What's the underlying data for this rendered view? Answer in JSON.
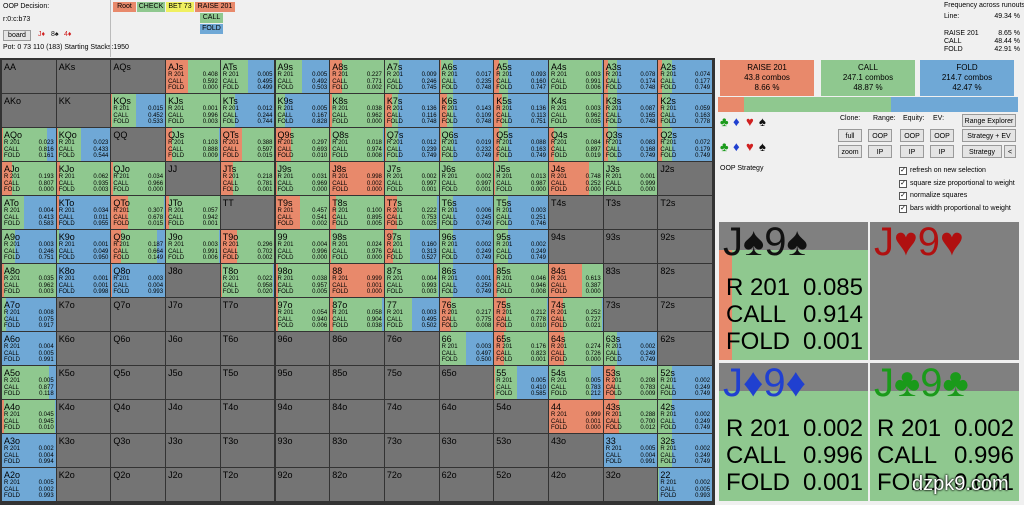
{
  "header": {
    "decision": "OOP Decision:",
    "line": "r:0:c:b73",
    "board_button": "board",
    "board_cards": [
      {
        "text": "J♦",
        "color": "#d02020"
      },
      {
        "text": "8♠",
        "color": "#111111"
      },
      {
        "text": "4♦",
        "color": "#d02020"
      }
    ],
    "pot": "Pot: 0 73 110 (183) Starting Stacks:1950"
  },
  "actions": {
    "top": [
      {
        "text": "Root",
        "color": "#e8896b"
      },
      {
        "text": "CHECK",
        "color": "#8fc88f"
      },
      {
        "text": "BET 73",
        "color": "#f0f060"
      },
      {
        "text": "RAISE 201",
        "color": "#e8896b"
      }
    ],
    "sub": [
      {
        "text": "CALL",
        "color": "#8fc88f"
      },
      {
        "text": "FOLD",
        "color": "#6fa8d6"
      }
    ]
  },
  "frequency": {
    "title": "Frequency across runouts:",
    "rows": [
      [
        "Line:",
        "49.34 %"
      ],
      [
        "RAISE 201",
        "8.65 %"
      ],
      [
        "CALL",
        "48.44 %"
      ],
      [
        "FOLD",
        "42.91 %"
      ]
    ]
  },
  "colors": {
    "raise": "#e8896b",
    "call": "#8fc88f",
    "fold": "#6fa8d6",
    "empty": "#747474"
  },
  "cell_row_labels": [
    "R 201",
    "CALL",
    "FOLD"
  ],
  "matrix": {
    "rows": [
      [
        [
          "AA"
        ],
        [
          "AKs"
        ],
        [
          "AQs"
        ],
        [
          "AJs",
          "0.408",
          "0.592",
          "0.000"
        ],
        [
          "ATs",
          "0.005",
          "0.495",
          "0.499"
        ],
        [
          "A9s",
          "0.005",
          "0.492",
          "0.503"
        ],
        [
          "A8s",
          "0.227",
          "0.771",
          "0.002"
        ],
        [
          "A7s",
          "0.009",
          "0.246",
          "0.745"
        ],
        [
          "A6s",
          "0.017",
          "0.235",
          "0.748"
        ],
        [
          "A5s",
          "0.093",
          "0.160",
          "0.747"
        ],
        [
          "A4s",
          "0.003",
          "0.991",
          "0.006"
        ],
        [
          "A3s",
          "0.078",
          "0.174",
          "0.748"
        ],
        [
          "A2s",
          "0.074",
          "0.177",
          "0.749"
        ]
      ],
      [
        [
          "AKo"
        ],
        [
          "KK"
        ],
        [
          "KQs",
          "0.015",
          "0.452",
          "0.533"
        ],
        [
          "KJs",
          "0.001",
          "0.996",
          "0.003"
        ],
        [
          "KTs",
          "0.012",
          "0.244",
          "0.744"
        ],
        [
          "K9s",
          "0.005",
          "0.167",
          "0.828"
        ],
        [
          "K8s",
          "0.038",
          "0.962",
          "0.000"
        ],
        [
          "K7s",
          "0.136",
          "0.116",
          "0.748"
        ],
        [
          "K6s",
          "0.143",
          "0.109",
          "0.748"
        ],
        [
          "K5s",
          "0.136",
          "0.113",
          "0.751"
        ],
        [
          "K4s",
          "0.003",
          "0.962",
          "0.035"
        ],
        [
          "K3s",
          "0.087",
          "0.165",
          "0.748"
        ],
        [
          "K2s",
          "0.059",
          "0.163",
          "0.778"
        ]
      ],
      [
        [
          "AQo",
          "0.023",
          "0.816",
          "0.161"
        ],
        [
          "KQo",
          "0.023",
          "0.433",
          "0.544"
        ],
        [
          "QQ"
        ],
        [
          "QJs",
          "0.103",
          "0.888",
          "0.009"
        ],
        [
          "QTs",
          "0.388",
          "0.597",
          "0.015"
        ],
        [
          "Q9s",
          "0.297",
          "0.693",
          "0.010"
        ],
        [
          "Q8s",
          "0.018",
          "0.974",
          "0.008"
        ],
        [
          "Q7s",
          "0.012",
          "0.239",
          "0.749"
        ],
        [
          "Q6s",
          "0.019",
          "0.232",
          "0.749"
        ],
        [
          "Q5s",
          "0.088",
          "0.163",
          "0.749"
        ],
        [
          "Q4s",
          "0.084",
          "0.897",
          "0.019"
        ],
        [
          "Q3s",
          "0.083",
          "0.168",
          "0.749"
        ],
        [
          "Q2s",
          "0.072",
          "0.179",
          "0.749"
        ]
      ],
      [
        [
          "AJo",
          "0.193",
          "0.807",
          "0.000"
        ],
        [
          "KJo",
          "0.062",
          "0.935",
          "0.003"
        ],
        [
          "QJo",
          "0.034",
          "0.966",
          "0.000"
        ],
        [
          "JJ"
        ],
        [
          "JTs",
          "0.218",
          "0.781",
          "0.001"
        ],
        [
          "J9s",
          "0.031",
          "0.969",
          "0.000"
        ],
        [
          "J8s",
          "0.998",
          "0.002",
          "0.000"
        ],
        [
          "J7s",
          "0.002",
          "0.997",
          "0.001"
        ],
        [
          "J6s",
          "0.002",
          "0.997",
          "0.001"
        ],
        [
          "J5s",
          "0.013",
          "0.987",
          "0.000"
        ],
        [
          "J4s",
          "0.748",
          "0.252",
          "0.000"
        ],
        [
          "J3s",
          "0.001",
          "0.999",
          "0.000"
        ],
        [
          "J2s"
        ]
      ],
      [
        [
          "ATo",
          "0.004",
          "0.413",
          "0.583"
        ],
        [
          "KTo",
          "0.034",
          "0.011",
          "0.955"
        ],
        [
          "QTo",
          "0.307",
          "0.678",
          "0.015"
        ],
        [
          "JTo",
          "0.057",
          "0.942",
          "0.001"
        ],
        [
          "TT"
        ],
        [
          "T9s",
          "0.457",
          "0.541",
          "0.002"
        ],
        [
          "T8s",
          "0.100",
          "0.895",
          "0.005"
        ],
        [
          "T7s",
          "0.222",
          "0.753",
          "0.025"
        ],
        [
          "T6s",
          "0.006",
          "0.245",
          "0.749"
        ],
        [
          "T5s",
          "0.003",
          "0.251",
          "0.746"
        ],
        [
          "T4s"
        ],
        [
          "T3s"
        ],
        [
          "T2s"
        ]
      ],
      [
        [
          "A9o",
          "0.003",
          "0.246",
          "0.751"
        ],
        [
          "K9o",
          "0.001",
          "0.049",
          "0.950"
        ],
        [
          "Q9o",
          "0.187",
          "0.664",
          "0.149"
        ],
        [
          "J9o",
          "0.003",
          "0.991",
          "0.006"
        ],
        [
          "T9o",
          "0.296",
          "0.702",
          "0.002"
        ],
        [
          "99",
          "0.004",
          "0.996",
          "0.000"
        ],
        [
          "98s",
          "0.024",
          "0.976",
          "0.000"
        ],
        [
          "97s",
          "0.160",
          "0.313",
          "0.527"
        ],
        [
          "96s",
          "0.002",
          "0.249",
          "0.749"
        ],
        [
          "95s",
          "0.002",
          "0.249",
          "0.749"
        ],
        [
          "94s"
        ],
        [
          "93s"
        ],
        [
          "92s"
        ]
      ],
      [
        [
          "A8o",
          "0.035",
          "0.962",
          "0.003"
        ],
        [
          "K8o",
          "0.001",
          "0.001",
          "0.998"
        ],
        [
          "Q8o",
          "0.003",
          "0.004",
          "0.993"
        ],
        [
          "J8o"
        ],
        [
          "T8o",
          "0.022",
          "0.958",
          "0.020"
        ],
        [
          "98o",
          "0.038",
          "0.957",
          "0.005"
        ],
        [
          "88",
          "0.999",
          "0.001",
          "0.000"
        ],
        [
          "87s",
          "0.004",
          "0.993",
          "0.003"
        ],
        [
          "86s",
          "0.001",
          "0.250",
          "0.749"
        ],
        [
          "85s",
          "0.046",
          "0.946",
          "0.008"
        ],
        [
          "84s",
          "0.613",
          "0.387",
          "0.000"
        ],
        [
          "83s"
        ],
        [
          "82s"
        ]
      ],
      [
        [
          "A7o",
          "0.008",
          "0.075",
          "0.917"
        ],
        [
          "K7o"
        ],
        [
          "Q7o"
        ],
        [
          "J7o"
        ],
        [
          "T7o"
        ],
        [
          "97o",
          "0.054",
          "0.940",
          "0.006"
        ],
        [
          "87o",
          "0.058",
          "0.904",
          "0.038"
        ],
        [
          "77",
          "0.003",
          "0.495",
          "0.502"
        ],
        [
          "76s",
          "0.217",
          "0.775",
          "0.008"
        ],
        [
          "75s",
          "0.212",
          "0.778",
          "0.010"
        ],
        [
          "74s",
          "0.252",
          "0.727",
          "0.021"
        ],
        [
          "73s"
        ],
        [
          "72s"
        ]
      ],
      [
        [
          "A6o",
          "0.004",
          "0.005",
          "0.991"
        ],
        [
          "K6o"
        ],
        [
          "Q6o"
        ],
        [
          "J6o"
        ],
        [
          "T6o"
        ],
        [
          "96o"
        ],
        [
          "86o"
        ],
        [
          "76o"
        ],
        [
          "66",
          "0.003",
          "0.497",
          "0.500"
        ],
        [
          "65s",
          "0.176",
          "0.823",
          "0.001"
        ],
        [
          "64s",
          "0.274",
          "0.726",
          "0.000"
        ],
        [
          "63s",
          "0.002",
          "0.249",
          "0.749"
        ],
        [
          "62s"
        ]
      ],
      [
        [
          "A5o",
          "0.005",
          "0.877",
          "0.118"
        ],
        [
          "K5o"
        ],
        [
          "Q5o"
        ],
        [
          "J5o"
        ],
        [
          "T5o"
        ],
        [
          "95o"
        ],
        [
          "85o"
        ],
        [
          "75o"
        ],
        [
          "65o"
        ],
        [
          "55",
          "0.005",
          "0.410",
          "0.585"
        ],
        [
          "54s",
          "0.005",
          "0.783",
          "0.212"
        ],
        [
          "53s",
          "0.208",
          "0.783",
          "0.009"
        ],
        [
          "52s",
          "0.002",
          "0.249",
          "0.749"
        ]
      ],
      [
        [
          "A4o",
          "0.045",
          "0.945",
          "0.010"
        ],
        [
          "K4o"
        ],
        [
          "Q4o"
        ],
        [
          "J4o"
        ],
        [
          "T4o"
        ],
        [
          "94o"
        ],
        [
          "84o"
        ],
        [
          "74o"
        ],
        [
          "64o"
        ],
        [
          "54o"
        ],
        [
          "44",
          "0.999",
          "0.001",
          "0.000"
        ],
        [
          "43s",
          "0.288",
          "0.700",
          "0.012"
        ],
        [
          "42s",
          "0.002",
          "0.249",
          "0.749"
        ]
      ],
      [
        [
          "A3o",
          "0.002",
          "0.004",
          "0.994"
        ],
        [
          "K3o"
        ],
        [
          "Q3o"
        ],
        [
          "J3o"
        ],
        [
          "T3o"
        ],
        [
          "93o"
        ],
        [
          "83o"
        ],
        [
          "73o"
        ],
        [
          "63o"
        ],
        [
          "53o"
        ],
        [
          "43o"
        ],
        [
          "33",
          "0.005",
          "0.004",
          "0.991"
        ],
        [
          "32s",
          "0.002",
          "0.249",
          "0.749"
        ]
      ],
      [
        [
          "A2o",
          "0.005",
          "0.002",
          "0.993"
        ],
        [
          "K2o"
        ],
        [
          "Q2o"
        ],
        [
          "J2o"
        ],
        [
          "T2o"
        ],
        [
          "92o"
        ],
        [
          "82o"
        ],
        [
          "72o"
        ],
        [
          "62o"
        ],
        [
          "52o"
        ],
        [
          "42o"
        ],
        [
          "32o"
        ],
        [
          "22",
          "0.002",
          "0.005",
          "0.993"
        ]
      ]
    ]
  },
  "summary": [
    {
      "name": "RAISE 201",
      "combos": "43.8 combos",
      "pct": "8.66 %",
      "color": "#e8896b"
    },
    {
      "name": "CALL",
      "combos": "247.1 combos",
      "pct": "48.87 %",
      "color": "#8fc88f"
    },
    {
      "name": "FOLD",
      "combos": "214.7 combos",
      "pct": "42.47 %",
      "color": "#6fa8d6"
    }
  ],
  "suits": [
    {
      "text": "♣",
      "color": "#1a9a1a"
    },
    {
      "text": "♦",
      "color": "#2040d0"
    },
    {
      "text": "♥",
      "color": "#d02020"
    },
    {
      "text": "♠",
      "color": "#111111"
    }
  ],
  "controls": {
    "labels": [
      "Clone:",
      "Range:",
      "Equity:",
      "EV:"
    ],
    "buttons": [
      "Range Explorer",
      "full",
      "OOP",
      "OOP",
      "OOP",
      "Strategy + EV",
      "zoom",
      "IP",
      "IP",
      "IP",
      "Strategy",
      "<"
    ]
  },
  "strategy_title": "OOP Strategy",
  "checkboxes": [
    "refresh on new selection",
    "square size proportional to weight",
    "normalize squares",
    "bars width proportional to weight"
  ],
  "cards": [
    {
      "label": "J♠9♠",
      "color": "#111111",
      "values": [
        "0.085",
        "0.914",
        "0.001"
      ]
    },
    {
      "label": "J♥9♥",
      "color": "#b01010"
    },
    {
      "label": "J♦9♦",
      "color": "#2040d0",
      "values": [
        "0.002",
        "0.996",
        "0.001"
      ]
    },
    {
      "label": "J♣9♣",
      "color": "#1a9a1a",
      "values": [
        "0.002",
        "0.996",
        "0.001"
      ]
    }
  ],
  "watermark": "dzpk9.com"
}
